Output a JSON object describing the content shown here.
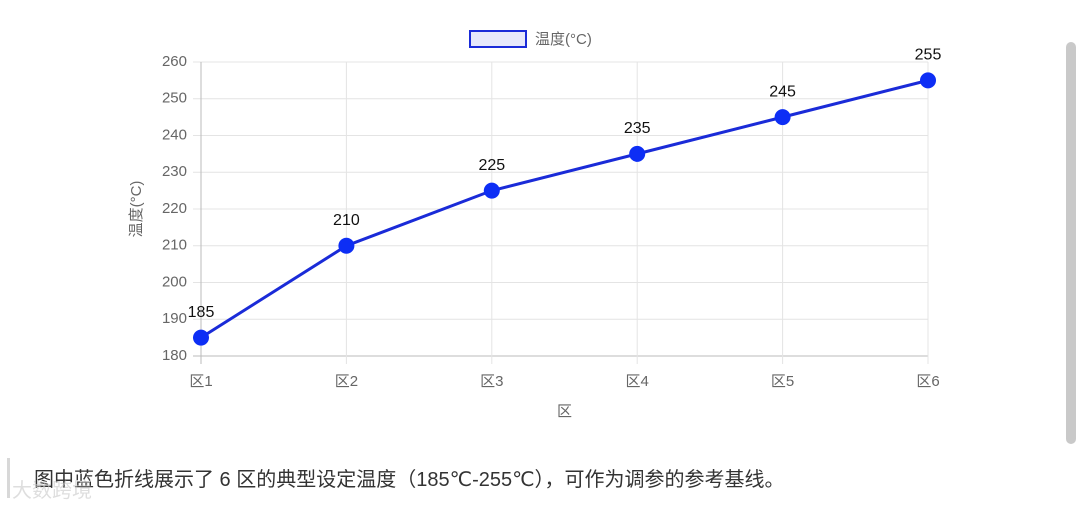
{
  "chart_data": {
    "type": "line",
    "categories": [
      "区1",
      "区2",
      "区3",
      "区4",
      "区5",
      "区6"
    ],
    "series": [
      {
        "name": "温度(°C)",
        "color": "#1a2bd8",
        "point_color": "#0d2ef5",
        "values": [
          185,
          210,
          225,
          235,
          245,
          255
        ]
      }
    ],
    "x_label": "区",
    "y_label": "温度(°C)",
    "ylim": [
      180,
      260
    ],
    "yticks": [
      180,
      190,
      200,
      210,
      220,
      230,
      240,
      250,
      260
    ],
    "grid": true,
    "legend": "top"
  },
  "caption": "图中蓝色折线展示了 6 区的典型设定温度（185℃-255℃），可作为调参的参考基线。",
  "watermark": "大数跨境"
}
